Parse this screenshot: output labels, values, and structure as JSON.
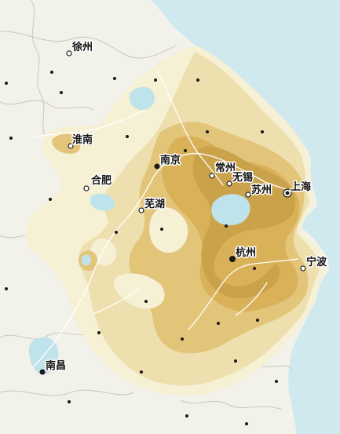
{
  "colors": {
    "sea": "#cfe9ee",
    "land": "#f2f1ea",
    "boundary": "#c9c8bf",
    "water": "#bfe3ea",
    "river": "#ffffff",
    "density_levels": [
      "#f6f0d4",
      "#eedfae",
      "#e3c57a",
      "#d8b158",
      "#caa24a"
    ],
    "dot": "#1a1a1a"
  },
  "cities": [
    {
      "id": "xuzhou",
      "label": "徐州",
      "symbol": "circle"
    },
    {
      "id": "huainan",
      "label": "淮南",
      "symbol": "circle"
    },
    {
      "id": "nanjing",
      "label": "南京",
      "symbol": "bullet"
    },
    {
      "id": "hefei",
      "label": "合肥",
      "symbol": "circle"
    },
    {
      "id": "changzhou",
      "label": "常州",
      "symbol": "circle"
    },
    {
      "id": "wuxi",
      "label": "无锡",
      "symbol": "circle"
    },
    {
      "id": "suzhou",
      "label": "苏州",
      "symbol": "circle"
    },
    {
      "id": "shanghai",
      "label": "上海",
      "symbol": "ringed-bullet"
    },
    {
      "id": "wuhu",
      "label": "芜湖",
      "symbol": "circle"
    },
    {
      "id": "hangzhou",
      "label": "杭州",
      "symbol": "bullet"
    },
    {
      "id": "ningbo",
      "label": "宁波",
      "symbol": "circle"
    },
    {
      "id": "nanchang",
      "label": "南昌",
      "symbol": "bullet"
    }
  ]
}
